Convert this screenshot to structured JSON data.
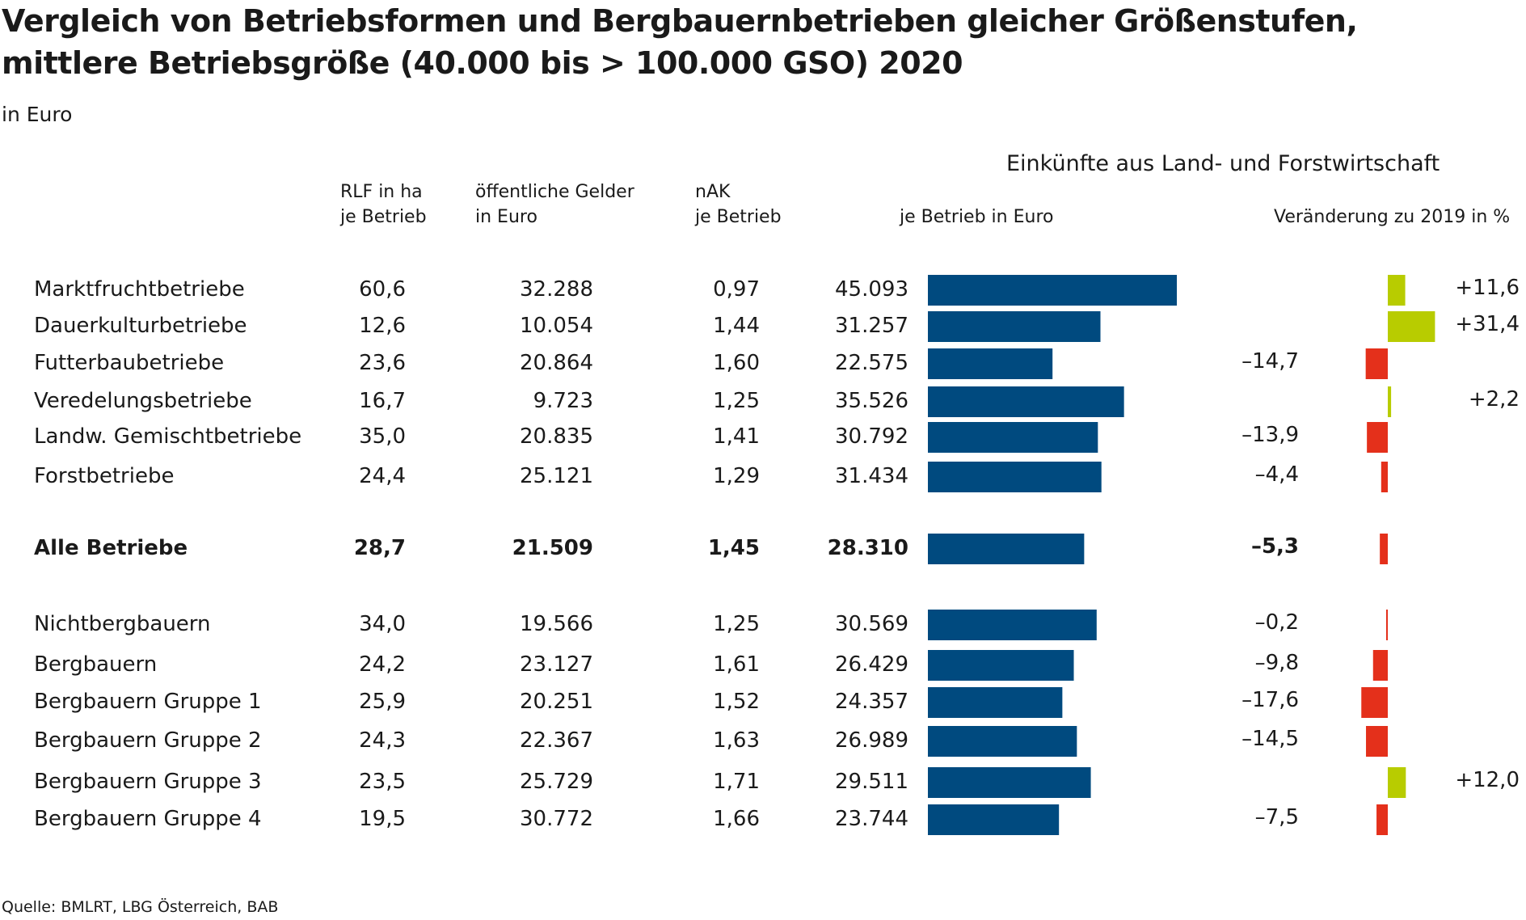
{
  "title_line1": "Vergleich von Betriebsformen und Bergbauernbetrieben gleicher Größenstufen,",
  "title_line2": "mittlere Betriebsgröße (40.000 bis > 100.000 GSO) 2020",
  "unit": "in Euro",
  "headers": {
    "rlf": [
      "RLF in ha",
      "je Betrieb"
    ],
    "public": [
      "öffentliche Gelder",
      "in Euro"
    ],
    "nak": [
      "nAK",
      "je Betrieb"
    ],
    "group": "Einkünfte aus Land- und Forstwirtschaft",
    "income": "je Betrieb in Euro",
    "change": "Veränderung zu 2019 in %"
  },
  "source": "Quelle: BMLRT, LBG Österreich, BAB",
  "colors": {
    "income_bar": "#004a7f",
    "positive": "#b8cc00",
    "negative": "#e4301b"
  },
  "chart_data": {
    "type": "bar",
    "categories": [
      "Marktfruchtbetriebe",
      "Dauerkulturbetriebe",
      "Futterbaubetriebe",
      "Veredelungsbetriebe",
      "Landw. Gemischtbetriebe",
      "Forstbetriebe",
      "Alle Betriebe",
      "Nichtbergbauern",
      "Bergbauern",
      "Bergbauern Gruppe 1",
      "Bergbauern Gruppe 2",
      "Bergbauern Gruppe 3",
      "Bergbauern Gruppe 4"
    ],
    "highlight": [
      "Alle Betriebe"
    ],
    "rlf_ha_labels": [
      "60,6",
      "12,6",
      "23,6",
      "16,7",
      "35,0",
      "24,4",
      "28,7",
      "34,0",
      "24,2",
      "25,9",
      "24,3",
      "23,5",
      "19,5"
    ],
    "public_funds_labels": [
      "32.288",
      "10.054",
      "20.864",
      "9.723",
      "20.835",
      "25.121",
      "21.509",
      "19.566",
      "23.127",
      "20.251",
      "22.367",
      "25.729",
      "30.772"
    ],
    "nak_labels": [
      "0,97",
      "1,44",
      "1,60",
      "1,25",
      "1,41",
      "1,29",
      "1,45",
      "1,25",
      "1,61",
      "1,52",
      "1,63",
      "1,71",
      "1,66"
    ],
    "income_labels": [
      "45.093",
      "31.257",
      "22.575",
      "35.526",
      "30.792",
      "31.434",
      "28.310",
      "30.569",
      "26.429",
      "24.357",
      "26.989",
      "29.511",
      "23.744"
    ],
    "change_labels": [
      "+11,6",
      "+31,4",
      "–14,7",
      "+2,2",
      "–13,9",
      "–4,4",
      "–5,3",
      "–0,2",
      "–9,8",
      "–17,6",
      "–14,5",
      "+12,0",
      "–7,5"
    ],
    "series": [
      {
        "name": "je Betrieb in Euro",
        "values": [
          45093,
          31257,
          22575,
          35526,
          30792,
          31434,
          28310,
          30569,
          26429,
          24357,
          26989,
          29511,
          23744
        ]
      },
      {
        "name": "Veränderung zu 2019 in %",
        "values": [
          11.6,
          31.4,
          -14.7,
          2.2,
          -13.9,
          -4.4,
          -5.3,
          -0.2,
          -9.8,
          -17.6,
          -14.5,
          12.0,
          -7.5
        ]
      }
    ]
  }
}
